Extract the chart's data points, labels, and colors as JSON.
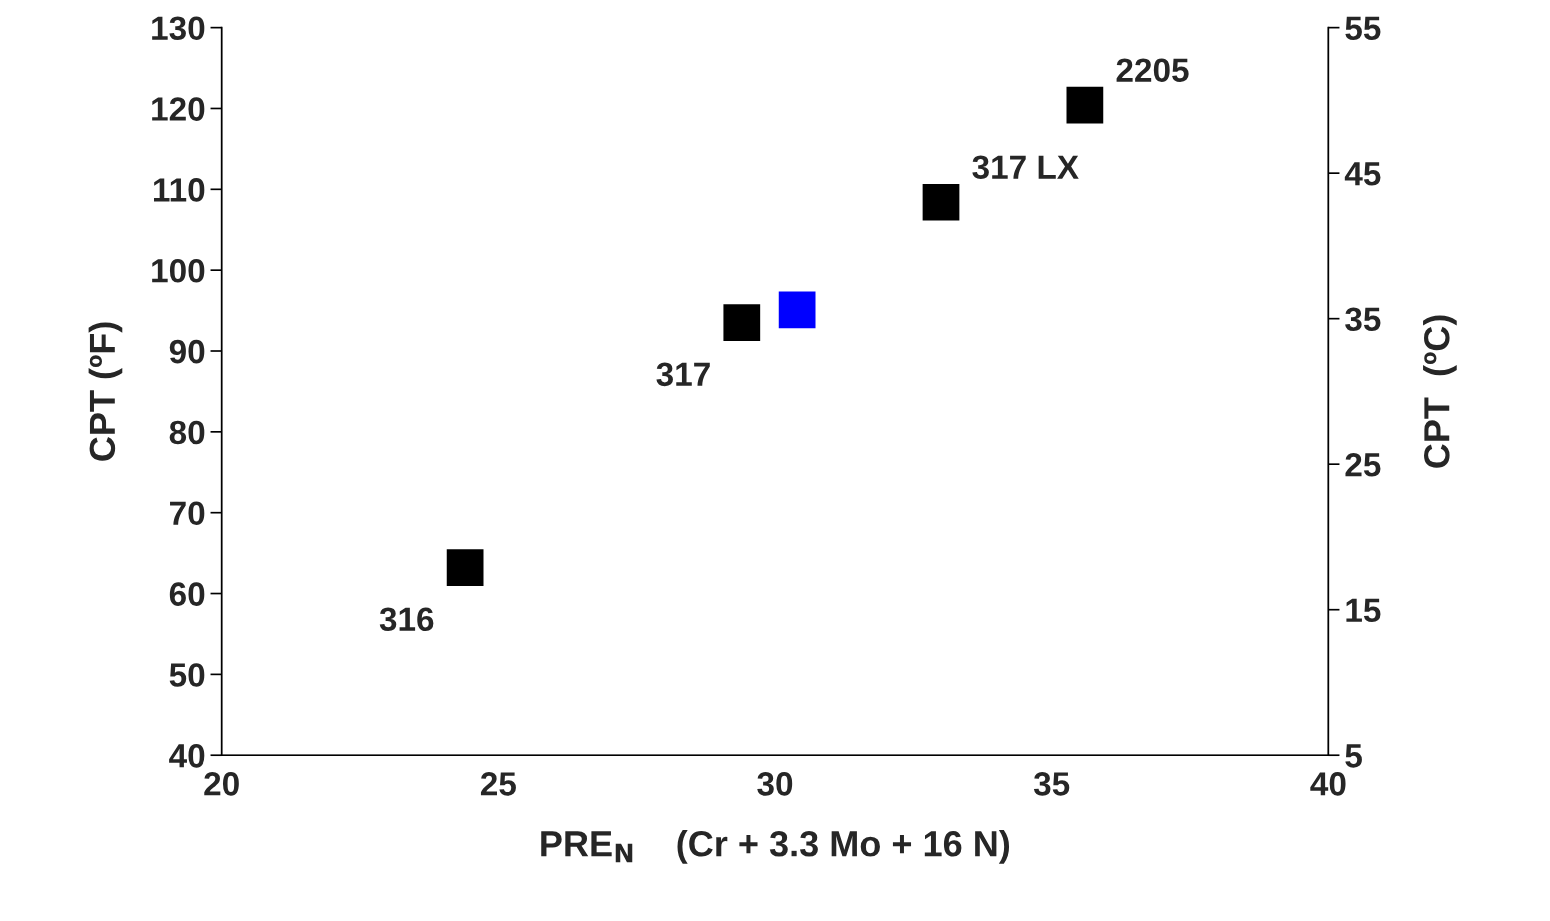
{
  "chart_data": {
    "type": "scatter",
    "xlabel": "PRE$_{N}$    (Cr + 3.3 Mo + 16 N)",
    "ylabel": "CPT (ºF)",
    "y2label": "CPT  (ºC)",
    "series": [
      {
        "color": "#000000",
        "x": [
          24.4,
          29.4,
          33.0,
          35.6
        ],
        "values": [
          63.2,
          93.5,
          108.4,
          120.4
        ]
      },
      {
        "color": "#0000ff",
        "x": [
          30.4
        ],
        "values": [
          95.1
        ]
      }
    ],
    "marker": "square",
    "grid": false,
    "xlim": [
      20,
      40
    ],
    "xticks": [
      20,
      25,
      30,
      35,
      40
    ],
    "ylim": [
      40,
      130
    ],
    "yticks": [
      40,
      50,
      60,
      70,
      80,
      90,
      100,
      110,
      120,
      130
    ],
    "y2lim": [
      5,
      55
    ],
    "y2ticks": [
      5,
      15,
      25,
      35,
      45,
      55
    ],
    "annotations": [
      {
        "text": "316",
        "x": 24.4,
        "y": 63.2
      },
      {
        "text": "317",
        "x": 29.4,
        "y": 93.5
      },
      {
        "text": "317 LX",
        "x": 33.0,
        "y": 108.4
      },
      {
        "text": "2205",
        "x": 35.6,
        "y": 120.4
      }
    ]
  }
}
